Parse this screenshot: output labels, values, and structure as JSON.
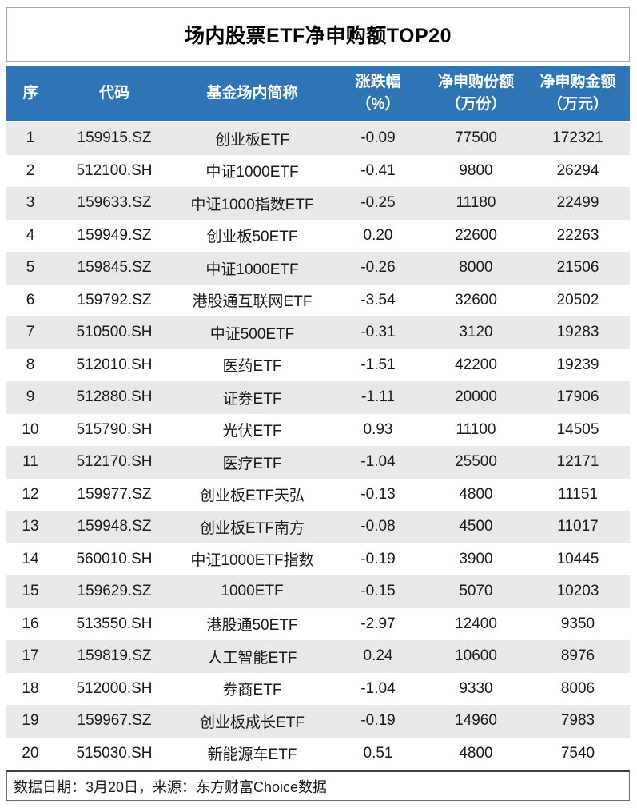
{
  "colors": {
    "header_bg": "#2f75b5",
    "row_stripe": "#e8e8e8",
    "header_text": "#ffffff",
    "body_text": "#1a1a1a"
  },
  "chart_data": {
    "type": "table",
    "title": "场内股票ETF净申购额TOP20",
    "columns": [
      {
        "label": "序",
        "sub": ""
      },
      {
        "label": "代码",
        "sub": ""
      },
      {
        "label": "基金场内简称",
        "sub": ""
      },
      {
        "label": "涨跌幅",
        "sub": "（%）"
      },
      {
        "label": "净申购份额",
        "sub": "（万份）"
      },
      {
        "label": "净申购金额",
        "sub": "（万元）"
      }
    ],
    "rows": [
      [
        "1",
        "159915.SZ",
        "创业板ETF",
        "-0.09",
        "77500",
        "172321"
      ],
      [
        "2",
        "512100.SH",
        "中证1000ETF",
        "-0.41",
        "9800",
        "26294"
      ],
      [
        "3",
        "159633.SZ",
        "中证1000指数ETF",
        "-0.25",
        "11180",
        "22499"
      ],
      [
        "4",
        "159949.SZ",
        "创业板50ETF",
        "0.20",
        "22600",
        "22263"
      ],
      [
        "5",
        "159845.SZ",
        "中证1000ETF",
        "-0.26",
        "8000",
        "21506"
      ],
      [
        "6",
        "159792.SZ",
        "港股通互联网ETF",
        "-3.54",
        "32600",
        "20502"
      ],
      [
        "7",
        "510500.SH",
        "中证500ETF",
        "-0.31",
        "3120",
        "19283"
      ],
      [
        "8",
        "512010.SH",
        "医药ETF",
        "-1.51",
        "42200",
        "19239"
      ],
      [
        "9",
        "512880.SH",
        "证券ETF",
        "-1.11",
        "20000",
        "17906"
      ],
      [
        "10",
        "515790.SH",
        "光伏ETF",
        "0.93",
        "11100",
        "14505"
      ],
      [
        "11",
        "512170.SH",
        "医疗ETF",
        "-1.04",
        "25500",
        "12171"
      ],
      [
        "12",
        "159977.SZ",
        "创业板ETF天弘",
        "-0.13",
        "4800",
        "11151"
      ],
      [
        "13",
        "159948.SZ",
        "创业板ETF南方",
        "-0.08",
        "4500",
        "11017"
      ],
      [
        "14",
        "560010.SH",
        "中证1000ETF指数",
        "-0.19",
        "3900",
        "10445"
      ],
      [
        "15",
        "159629.SZ",
        "1000ETF",
        "-0.15",
        "5070",
        "10203"
      ],
      [
        "16",
        "513550.SH",
        "港股通50ETF",
        "-2.97",
        "12400",
        "9350"
      ],
      [
        "17",
        "159819.SZ",
        "人工智能ETF",
        "0.24",
        "10600",
        "8976"
      ],
      [
        "18",
        "512000.SH",
        "券商ETF",
        "-1.04",
        "9330",
        "8006"
      ],
      [
        "19",
        "159967.SZ",
        "创业板成长ETF",
        "-0.19",
        "14960",
        "7983"
      ],
      [
        "20",
        "515030.SH",
        "新能源车ETF",
        "0.51",
        "4800",
        "7540"
      ]
    ],
    "source_note": "数据日期：3月20日，来源：东方财富Choice数据"
  }
}
